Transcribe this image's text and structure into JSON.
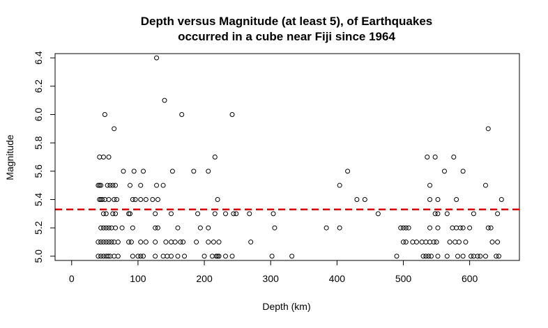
{
  "chart_data": {
    "type": "scatter",
    "title_lines": [
      "Depth versus Magnitude (at least 5), of Earthquakes",
      "occurred in a cube near Fiji since 1964"
    ],
    "xlabel": "Depth (km)",
    "ylabel": "Magnitude",
    "xlim": [
      -25,
      675
    ],
    "ylim": [
      4.97,
      6.43
    ],
    "x_ticks": [
      0,
      100,
      200,
      300,
      400,
      500,
      600
    ],
    "x_tick_labels": [
      "0",
      "100",
      "200",
      "300",
      "400",
      "500",
      "600"
    ],
    "y_ticks": [
      5.0,
      5.2,
      5.4,
      5.6,
      5.8,
      6.0,
      6.2,
      6.4
    ],
    "y_tick_labels": [
      "5.0",
      "5.2",
      "5.4",
      "5.6",
      "5.8",
      "6.0",
      "6.2",
      "6.4"
    ],
    "reference_line": {
      "y": 5.33,
      "style": "dashed",
      "color": "#dd0000"
    },
    "point_color": "#000000",
    "points": [
      [
        40,
        5.0
      ],
      [
        44,
        5.0
      ],
      [
        48,
        5.0
      ],
      [
        52,
        5.0
      ],
      [
        55,
        5.0
      ],
      [
        58,
        5.0
      ],
      [
        64,
        5.0
      ],
      [
        70,
        5.0
      ],
      [
        92,
        5.0
      ],
      [
        100,
        5.0
      ],
      [
        104,
        5.0
      ],
      [
        108,
        5.0
      ],
      [
        126,
        5.0
      ],
      [
        138,
        5.0
      ],
      [
        144,
        5.0
      ],
      [
        150,
        5.0
      ],
      [
        160,
        5.0
      ],
      [
        170,
        5.0
      ],
      [
        200,
        5.0
      ],
      [
        212,
        5.0
      ],
      [
        218,
        5.0
      ],
      [
        220,
        5.0
      ],
      [
        222,
        5.0
      ],
      [
        232,
        5.0
      ],
      [
        242,
        5.0
      ],
      [
        302,
        5.0
      ],
      [
        332,
        5.0
      ],
      [
        490,
        5.0
      ],
      [
        530,
        5.0
      ],
      [
        534,
        5.0
      ],
      [
        538,
        5.0
      ],
      [
        542,
        5.0
      ],
      [
        552,
        5.0
      ],
      [
        566,
        5.0
      ],
      [
        582,
        5.0
      ],
      [
        590,
        5.0
      ],
      [
        602,
        5.0
      ],
      [
        606,
        5.0
      ],
      [
        612,
        5.0
      ],
      [
        616,
        5.0
      ],
      [
        624,
        5.0
      ],
      [
        640,
        5.0
      ],
      [
        644,
        5.0
      ],
      [
        40,
        5.1
      ],
      [
        44,
        5.1
      ],
      [
        48,
        5.1
      ],
      [
        52,
        5.1
      ],
      [
        56,
        5.1
      ],
      [
        60,
        5.1
      ],
      [
        64,
        5.1
      ],
      [
        70,
        5.1
      ],
      [
        86,
        5.1
      ],
      [
        90,
        5.1
      ],
      [
        104,
        5.1
      ],
      [
        112,
        5.1
      ],
      [
        126,
        5.1
      ],
      [
        142,
        5.1
      ],
      [
        150,
        5.1
      ],
      [
        156,
        5.1
      ],
      [
        164,
        5.1
      ],
      [
        168,
        5.1
      ],
      [
        188,
        5.1
      ],
      [
        206,
        5.1
      ],
      [
        214,
        5.1
      ],
      [
        222,
        5.1
      ],
      [
        270,
        5.1
      ],
      [
        500,
        5.1
      ],
      [
        504,
        5.1
      ],
      [
        514,
        5.1
      ],
      [
        520,
        5.1
      ],
      [
        528,
        5.1
      ],
      [
        534,
        5.1
      ],
      [
        540,
        5.1
      ],
      [
        546,
        5.1
      ],
      [
        550,
        5.1
      ],
      [
        570,
        5.1
      ],
      [
        578,
        5.1
      ],
      [
        584,
        5.1
      ],
      [
        594,
        5.1
      ],
      [
        634,
        5.1
      ],
      [
        642,
        5.1
      ],
      [
        44,
        5.2
      ],
      [
        48,
        5.2
      ],
      [
        52,
        5.2
      ],
      [
        56,
        5.2
      ],
      [
        60,
        5.2
      ],
      [
        66,
        5.2
      ],
      [
        76,
        5.2
      ],
      [
        92,
        5.2
      ],
      [
        126,
        5.2
      ],
      [
        130,
        5.2
      ],
      [
        160,
        5.2
      ],
      [
        194,
        5.2
      ],
      [
        206,
        5.2
      ],
      [
        306,
        5.2
      ],
      [
        384,
        5.2
      ],
      [
        404,
        5.2
      ],
      [
        496,
        5.2
      ],
      [
        500,
        5.2
      ],
      [
        504,
        5.2
      ],
      [
        508,
        5.2
      ],
      [
        540,
        5.2
      ],
      [
        552,
        5.2
      ],
      [
        574,
        5.2
      ],
      [
        580,
        5.2
      ],
      [
        586,
        5.2
      ],
      [
        590,
        5.2
      ],
      [
        600,
        5.2
      ],
      [
        628,
        5.2
      ],
      [
        632,
        5.2
      ],
      [
        48,
        5.3
      ],
      [
        52,
        5.3
      ],
      [
        62,
        5.3
      ],
      [
        66,
        5.3
      ],
      [
        86,
        5.3
      ],
      [
        88,
        5.3
      ],
      [
        126,
        5.3
      ],
      [
        150,
        5.3
      ],
      [
        190,
        5.3
      ],
      [
        216,
        5.3
      ],
      [
        232,
        5.3
      ],
      [
        244,
        5.3
      ],
      [
        248,
        5.3
      ],
      [
        268,
        5.3
      ],
      [
        304,
        5.3
      ],
      [
        462,
        5.3
      ],
      [
        548,
        5.3
      ],
      [
        552,
        5.3
      ],
      [
        566,
        5.3
      ],
      [
        606,
        5.3
      ],
      [
        642,
        5.3
      ],
      [
        42,
        5.4
      ],
      [
        44,
        5.4
      ],
      [
        46,
        5.4
      ],
      [
        50,
        5.4
      ],
      [
        56,
        5.4
      ],
      [
        64,
        5.4
      ],
      [
        68,
        5.4
      ],
      [
        92,
        5.4
      ],
      [
        96,
        5.4
      ],
      [
        104,
        5.4
      ],
      [
        112,
        5.4
      ],
      [
        122,
        5.4
      ],
      [
        130,
        5.4
      ],
      [
        220,
        5.4
      ],
      [
        430,
        5.4
      ],
      [
        442,
        5.4
      ],
      [
        540,
        5.4
      ],
      [
        552,
        5.4
      ],
      [
        580,
        5.4
      ],
      [
        648,
        5.4
      ],
      [
        40,
        5.5
      ],
      [
        42,
        5.5
      ],
      [
        44,
        5.5
      ],
      [
        54,
        5.5
      ],
      [
        58,
        5.5
      ],
      [
        62,
        5.5
      ],
      [
        66,
        5.5
      ],
      [
        88,
        5.5
      ],
      [
        104,
        5.5
      ],
      [
        128,
        5.5
      ],
      [
        138,
        5.5
      ],
      [
        404,
        5.5
      ],
      [
        540,
        5.5
      ],
      [
        624,
        5.5
      ],
      [
        78,
        5.6
      ],
      [
        94,
        5.6
      ],
      [
        108,
        5.6
      ],
      [
        152,
        5.6
      ],
      [
        184,
        5.6
      ],
      [
        206,
        5.6
      ],
      [
        416,
        5.6
      ],
      [
        562,
        5.6
      ],
      [
        590,
        5.6
      ],
      [
        42,
        5.7
      ],
      [
        48,
        5.7
      ],
      [
        56,
        5.7
      ],
      [
        216,
        5.7
      ],
      [
        536,
        5.7
      ],
      [
        548,
        5.7
      ],
      [
        576,
        5.7
      ],
      [
        64,
        5.9
      ],
      [
        628,
        5.9
      ],
      [
        50,
        6.0
      ],
      [
        166,
        6.0
      ],
      [
        242,
        6.0
      ],
      [
        140,
        6.1
      ],
      [
        128,
        6.4
      ]
    ]
  }
}
